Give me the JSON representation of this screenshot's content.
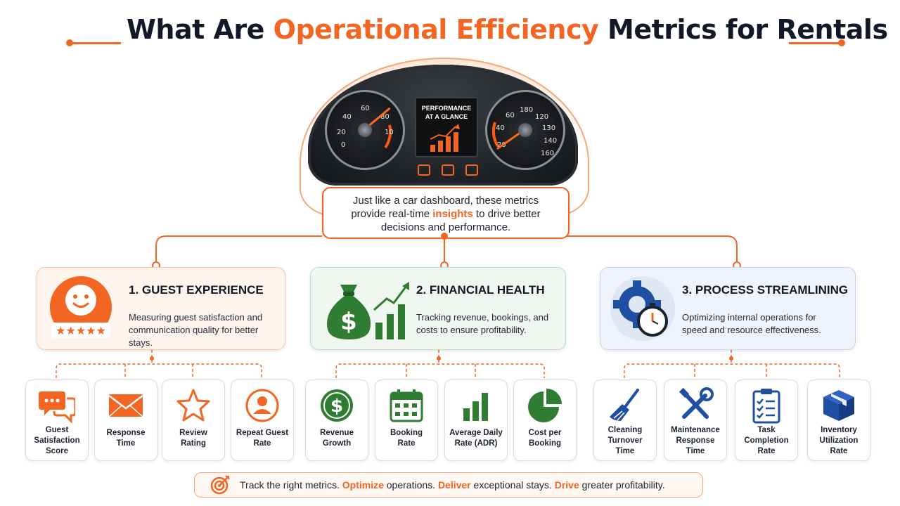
{
  "title": {
    "part1": "What Are ",
    "highlight": "Operational Efficiency",
    "part2": " Metrics for Rentals"
  },
  "dashboard": {
    "screen_line1": "PERFORMANCE",
    "screen_line2": "AT A GLANCE",
    "left_gauge_labels": [
      "0",
      "20",
      "40",
      "60",
      "80",
      "10"
    ],
    "right_gauge_labels": [
      "20",
      "40",
      "60",
      "180",
      "120",
      "130",
      "140",
      "160"
    ]
  },
  "callout": {
    "line1": "Just like a car dashboard, these metrics",
    "line2_pre": "provide real-time ",
    "line2_hl": "insights",
    "line2_post": " to drive better",
    "line3": "decisions and performance."
  },
  "categories": [
    {
      "title": "1. GUEST EXPERIENCE",
      "desc1": "Measuring guest satisfaction and",
      "desc2": "communication quality for better stays.",
      "color": "#f26522"
    },
    {
      "title": "2. FINANCIAL HEALTH",
      "desc1": "Tracking revenue, bookings, and",
      "desc2": "costs to ensure profitability.",
      "color": "#2e7d32"
    },
    {
      "title": "3. PROCESS STREAMLINING",
      "desc1": "Optimizing internal operations for",
      "desc2": "speed and resource effectiveness.",
      "color": "#1e4fa3"
    }
  ],
  "metrics": [
    {
      "lines": [
        "Guest",
        "Satisfaction",
        "Score"
      ],
      "icon": "chat-bubbles-icon"
    },
    {
      "lines": [
        "Response",
        "Time"
      ],
      "icon": "envelope-icon"
    },
    {
      "lines": [
        "Review",
        "Rating"
      ],
      "icon": "star-icon"
    },
    {
      "lines": [
        "Repeat Guest",
        "Rate"
      ],
      "icon": "user-repeat-icon"
    },
    {
      "lines": [
        "Revenue",
        "Growth"
      ],
      "icon": "dollar-coin-icon"
    },
    {
      "lines": [
        "Booking",
        "Rate"
      ],
      "icon": "calendar-icon"
    },
    {
      "lines": [
        "Average Daily",
        "Rate (ADR)"
      ],
      "icon": "bar-chart-icon"
    },
    {
      "lines": [
        "Cost per",
        "Booking"
      ],
      "icon": "pie-chart-icon"
    },
    {
      "lines": [
        "Cleaning",
        "Turnover",
        "Time"
      ],
      "icon": "broom-icon"
    },
    {
      "lines": [
        "Maintenance",
        "Response",
        "Time"
      ],
      "icon": "tools-icon"
    },
    {
      "lines": [
        "Task",
        "Completion",
        "Rate"
      ],
      "icon": "clipboard-icon"
    },
    {
      "lines": [
        "Inventory",
        "Utilization",
        "Rate"
      ],
      "icon": "box-icon"
    }
  ],
  "footer": {
    "p1": "Track the right metrics. ",
    "h1": "Optimize",
    "p2": " operations. ",
    "h2": "Deliver",
    "p3": " exceptional stays. ",
    "h3": "Drive",
    "p4": " greater profitability."
  },
  "colors": {
    "accent": "#f26522",
    "green": "#2e7d32",
    "blue": "#1e4fa3"
  }
}
